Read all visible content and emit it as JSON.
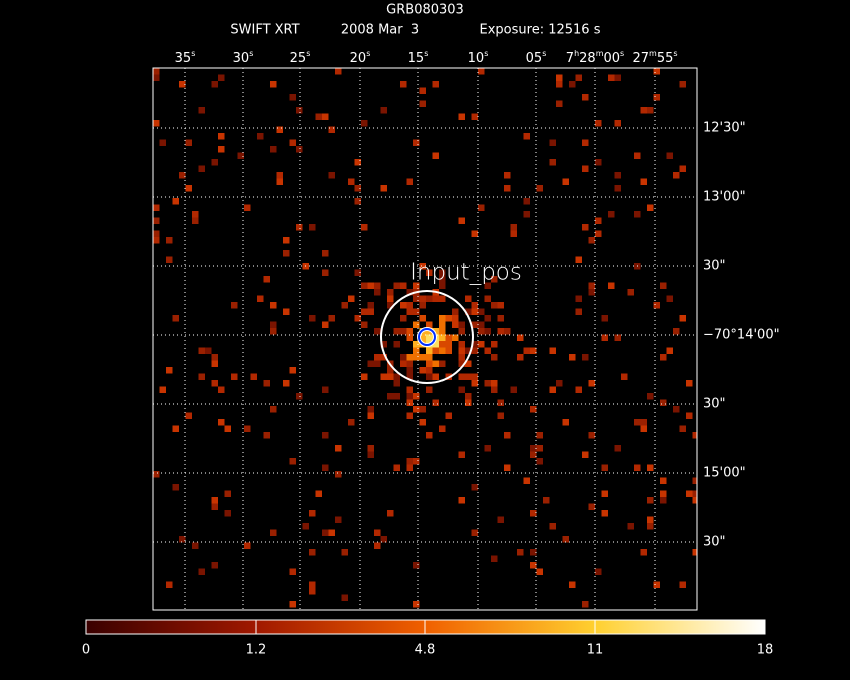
{
  "header": {
    "object": "GRB080303",
    "instrument": "SWIFT XRT",
    "date": "2008 Mar  3",
    "exposure": "Exposure: 12516 s"
  },
  "ra_labels": [
    [
      "35",
      "s"
    ],
    [
      "30",
      "s"
    ],
    [
      "25",
      "s"
    ],
    [
      "20",
      "s"
    ],
    [
      "15",
      "s"
    ],
    [
      "10",
      "s"
    ],
    [
      "05",
      "s"
    ],
    [
      "7",
      "h",
      "28",
      "m",
      "00",
      "s"
    ],
    [
      "27",
      "m",
      "55",
      "s"
    ]
  ],
  "dec_labels": [
    "12'30\"",
    "13'00\"",
    "30\"",
    "−70°14'00\"",
    "30\"",
    "15'00\"",
    "30\""
  ],
  "marker_label": "Input_pos",
  "colorbar_labels": [
    "0",
    "1.2",
    "4.8",
    "11",
    "18"
  ]
}
